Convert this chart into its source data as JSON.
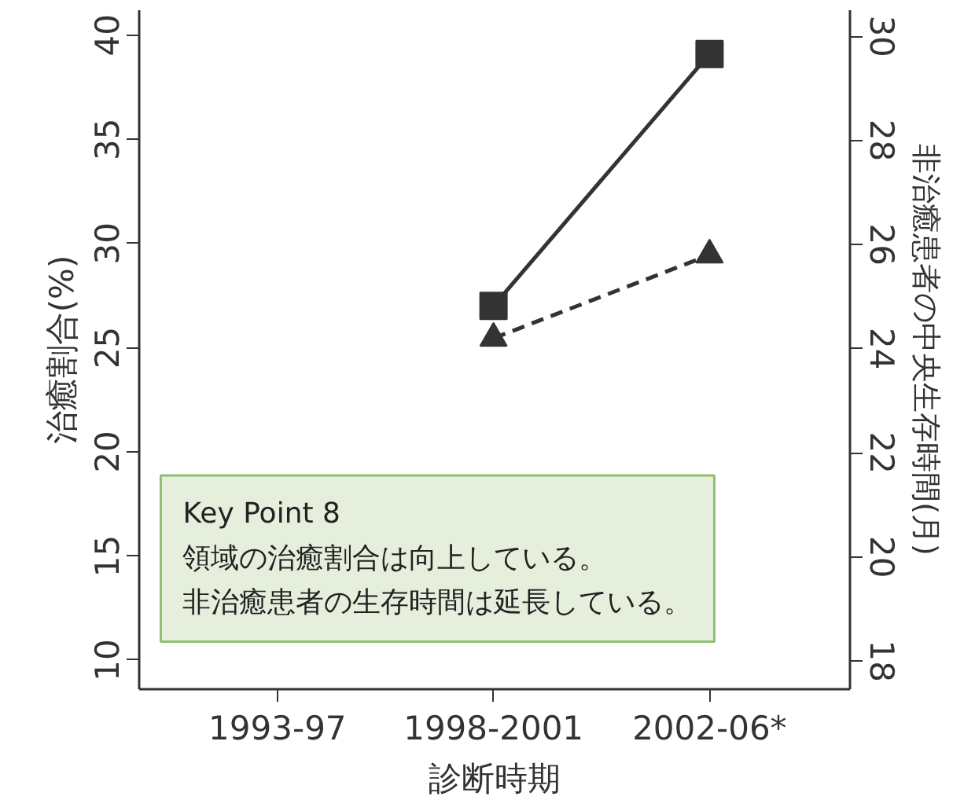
{
  "chart_data": {
    "type": "line",
    "xlabel": "診断時期",
    "ylabel": "治癒割合(%)",
    "y2label": "非治癒患者の中央生存時間(月)",
    "categories": [
      "1993-97",
      "1998-2001",
      "2002-06*"
    ],
    "series": [
      {
        "color": "#333333",
        "values": [
          null,
          27.0,
          39.1
        ],
        "marker": "square",
        "line_style": "solid"
      },
      {
        "color": "#333333",
        "values": [
          null,
          24.2,
          25.8
        ],
        "marker": "triangle",
        "line_style": "dashed",
        "axis": "y2"
      }
    ],
    "ylim": [
      8.6,
      41.2
    ],
    "yticks": [
      10,
      15,
      20,
      25,
      30,
      35,
      40
    ],
    "y2lim": [
      17.46,
      30.5
    ],
    "y2ticks": [
      18,
      20,
      22,
      24,
      26,
      28,
      30
    ],
    "grid": false,
    "annotations": [
      "Key Point 8",
      "領域の治癒割合は向上している。",
      "非治癒患者の生存時間は延長している。"
    ]
  }
}
